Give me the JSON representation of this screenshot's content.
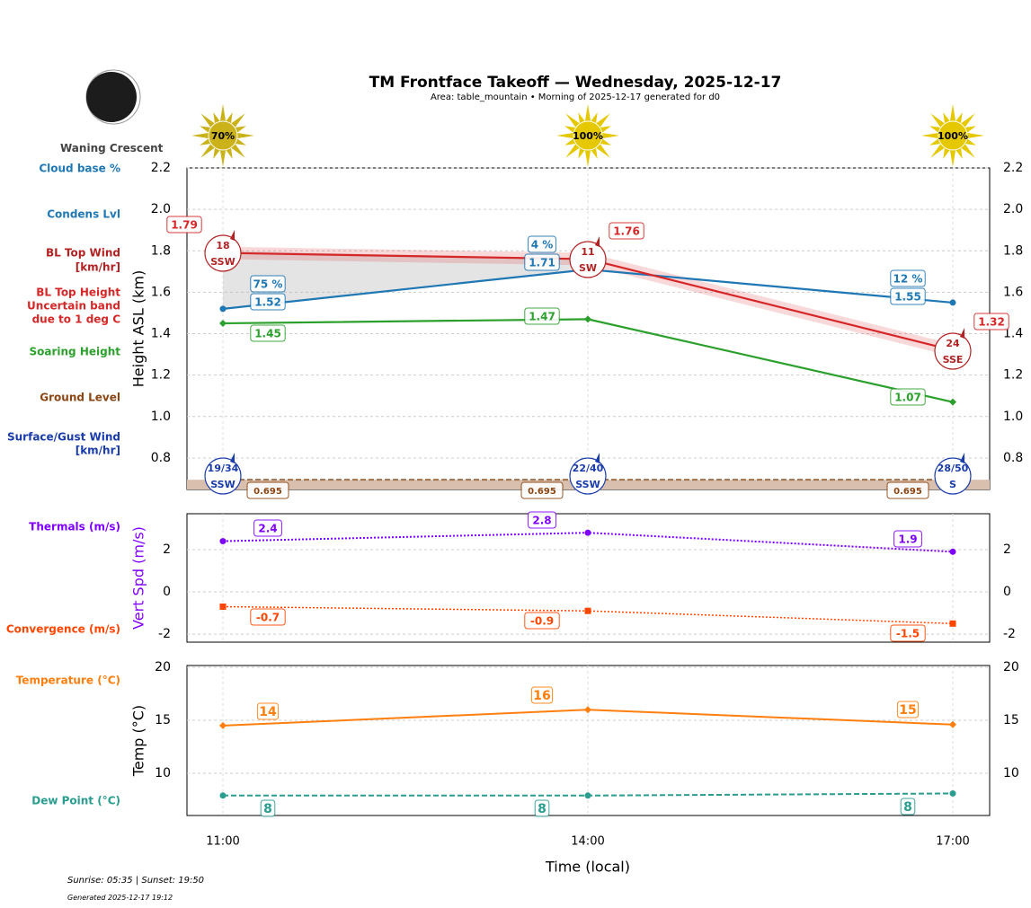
{
  "title": "TM Frontface Takeoff — Wednesday, 2025-12-17",
  "subtitle": "Area: table_mountain • Morning of 2025-12-17 generated for d0",
  "moon_phase": "Waning Crescent",
  "sun_info": "Sunrise: 05:35 | Sunset: 19:50",
  "generated": "Generated 2025-12-17 19:12",
  "colors": {
    "cloud": "#1f77b4",
    "bltop": "#d62728",
    "soaring": "#2ca02c",
    "ground": "#8b4513",
    "surface_wind": "#1a3caa",
    "thermals": "#7f00ff",
    "convergence": "#ff4500",
    "temperature": "#ff7f0e",
    "dewpoint": "#2a9d8f",
    "sun": "#e6c800"
  },
  "row_labels": {
    "cloud_pct": "Cloud base %",
    "condens": "Condens Lvl",
    "bl_wind_1": "BL Top Wind",
    "bl_wind_2": "[km/hr]",
    "bl_height_1": "BL Top Height",
    "bl_height_2": "Uncertain band",
    "bl_height_3": "due to 1 deg C",
    "soaring": "Soaring Height",
    "ground": "Ground Level",
    "surface_1": "Surface/Gust Wind",
    "surface_2": "[km/hr]",
    "thermals": "Thermals (m/s)",
    "convergence": "Convergence (m/s)",
    "temperature": "Temperature (°C)",
    "dewpoint": "Dew Point (°C)"
  },
  "chart_data": [
    {
      "type": "line",
      "ylabel": "Height ASL (km)",
      "ylim": [
        0.648,
        2.2
      ],
      "yticks": [
        "0.8",
        "1.0",
        "1.2",
        "1.4",
        "1.6",
        "1.8",
        "2.0",
        "2.2"
      ],
      "grid": true,
      "x": [
        "11:00",
        "14:00",
        "17:00"
      ],
      "sun_pct": [
        "70%",
        "100%",
        "100%"
      ],
      "series": [
        {
          "key": "condens",
          "values": [
            1.52,
            1.71,
            1.55
          ],
          "labels": [
            "1.52",
            "1.71",
            "1.55"
          ],
          "cloud_pct": [
            "75 %",
            "4 %",
            "12 %"
          ]
        },
        {
          "key": "bltop",
          "values": [
            1.79,
            1.76,
            1.32
          ],
          "labels": [
            "1.79",
            "1.76",
            "1.32"
          ],
          "band": 0.03,
          "wind": [
            [
              "18",
              "SSW"
            ],
            [
              "11",
              "SW"
            ],
            [
              "24",
              "SSE"
            ]
          ]
        },
        {
          "key": "soaring",
          "values": [
            1.45,
            1.47,
            1.07
          ],
          "labels": [
            "1.45",
            "1.47",
            "1.07"
          ]
        },
        {
          "key": "ground",
          "values": [
            0.695,
            0.695,
            0.695
          ],
          "labels": [
            "0.695",
            "0.695",
            "0.695"
          ]
        }
      ],
      "surface_wind": [
        [
          "19/34",
          "SSW"
        ],
        [
          "22/40",
          "SSW"
        ],
        [
          "28/50",
          "S"
        ]
      ]
    },
    {
      "type": "line",
      "ylabel": "Vert Spd (m/s)",
      "ylim": [
        -2.38,
        3.7
      ],
      "yticks": [
        "-2",
        "0",
        "2"
      ],
      "grid": true,
      "series": [
        {
          "key": "thermals",
          "values": [
            2.4,
            2.8,
            1.9
          ],
          "labels": [
            "2.4",
            "2.8",
            "1.9"
          ]
        },
        {
          "key": "convergence",
          "values": [
            -0.7,
            -0.9,
            -1.5
          ],
          "labels": [
            "-0.7",
            "-0.9",
            "-1.5"
          ]
        }
      ]
    },
    {
      "type": "line",
      "ylabel": "Temp (°C)",
      "xlabel": "Time (local)",
      "ylim": [
        6.02,
        20.17
      ],
      "yticks": [
        "10",
        "15",
        "20"
      ],
      "grid": true,
      "series": [
        {
          "key": "temperature",
          "values": [
            14.5,
            16,
            14.6
          ],
          "labels": [
            "14",
            "16",
            "15"
          ]
        },
        {
          "key": "dewpoint",
          "values": [
            7.9,
            7.9,
            8.1
          ],
          "labels": [
            "8",
            "8",
            "8"
          ]
        }
      ]
    }
  ]
}
